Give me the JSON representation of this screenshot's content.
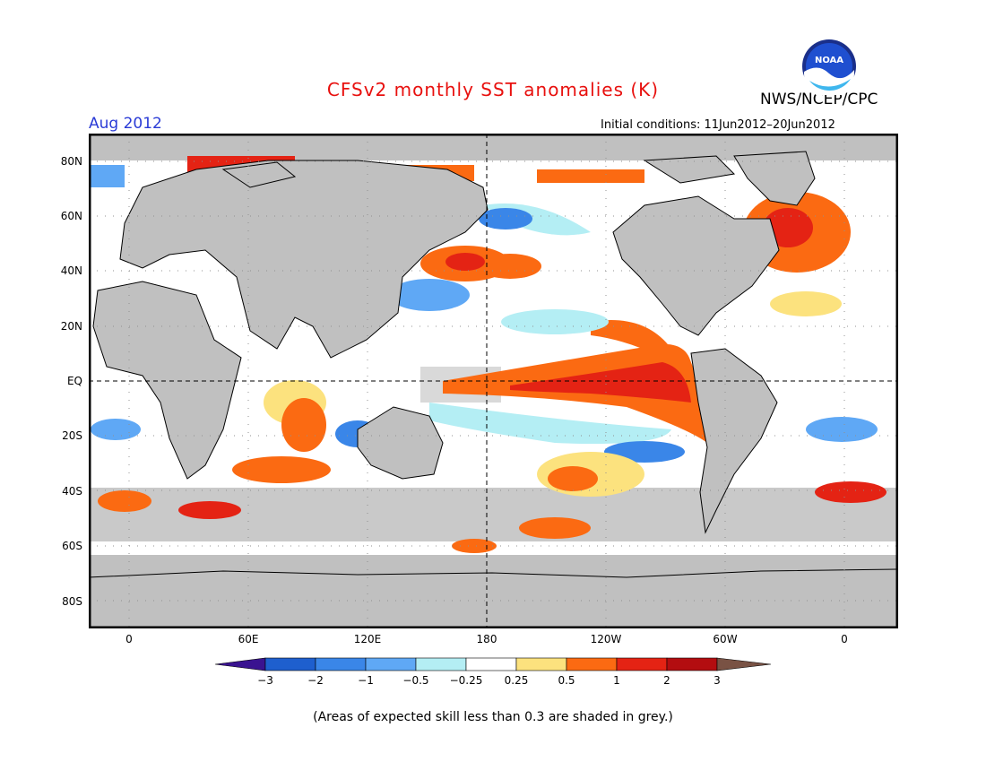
{
  "header": {
    "title": "CFSv2 monthly SST anomalies (K)",
    "month": "Aug 2012",
    "agency": "NWS/NCEP/CPC",
    "initial_conditions": "Initial conditions: 11Jun2012–20Jun2012",
    "logo_text": "NOAA"
  },
  "axes": {
    "lat_labels": [
      "80N",
      "60N",
      "40N",
      "20N",
      "EQ",
      "20S",
      "40S",
      "60S",
      "80S"
    ],
    "lon_labels": [
      "0",
      "60E",
      "120E",
      "180",
      "120W",
      "60W",
      "0"
    ]
  },
  "colorbar": {
    "ticks": [
      "−3",
      "−2",
      "−1",
      "−0.5",
      "−0.25",
      "0.25",
      "0.5",
      "1",
      "2",
      "3"
    ],
    "colors": [
      "#3a1390",
      "#1e5fce",
      "#3a86e8",
      "#5fa8f5",
      "#b4eef4",
      "#ffffff",
      "#fce27e",
      "#fb6a12",
      "#e42314",
      "#b30d10",
      "#795244"
    ]
  },
  "footnote": "(Areas of expected skill less than 0.3 are shaded in grey.)",
  "colors": {
    "land": "#c0c0c0",
    "low_skill": "#c0c0c0",
    "ocean_neutral": "#ffffff"
  }
}
